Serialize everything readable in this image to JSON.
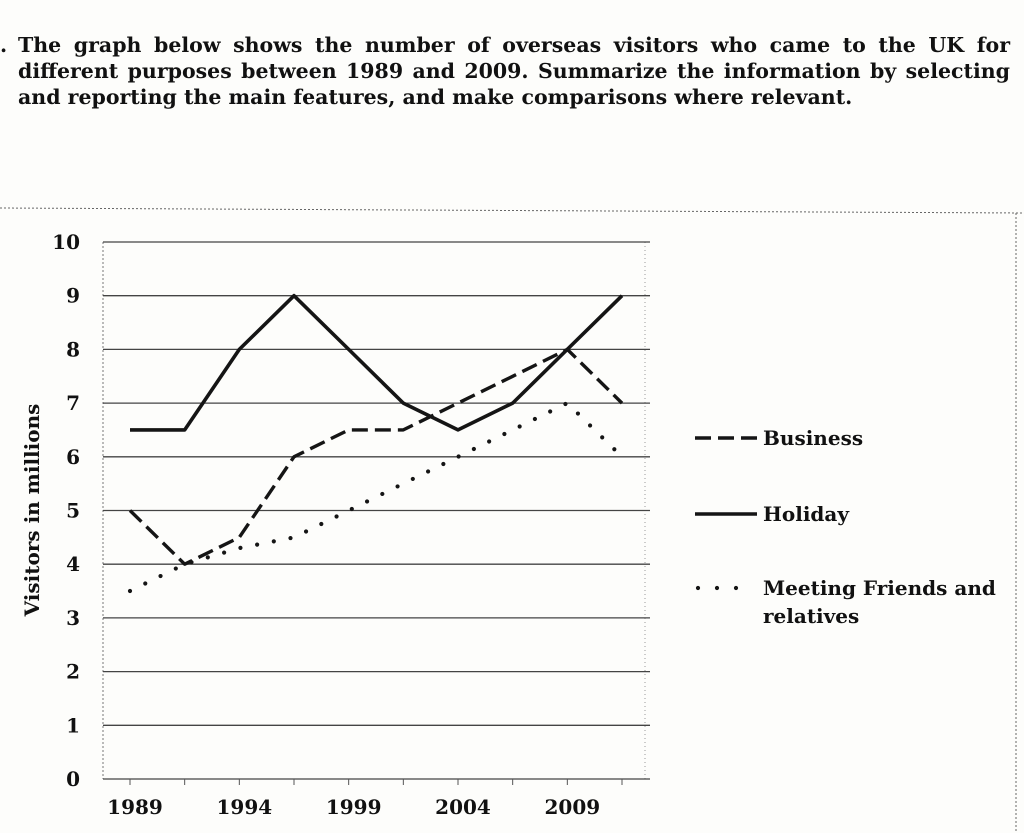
{
  "question": {
    "bullet": ".",
    "text": "The graph below shows the number of overseas visitors who came to the UK for different purposes between 1989 and 2009. Summarize the information by selecting and reporting the main features, and make comparisons where relevant."
  },
  "chart_data": {
    "type": "line",
    "title": "",
    "xlabel": "",
    "ylabel": "Visitors in millions",
    "ylim": [
      0,
      10
    ],
    "y_ticks": [
      0,
      1,
      2,
      3,
      4,
      5,
      6,
      7,
      8,
      9,
      10
    ],
    "x_ticks": [
      "1989",
      "1994",
      "1999",
      "2004",
      "2009"
    ],
    "grid": true,
    "legend_position": "right",
    "series": [
      {
        "name": "Business",
        "style": "dashed",
        "points": [
          [
            1989,
            5
          ],
          [
            1991.5,
            4
          ],
          [
            1994,
            4.5
          ],
          [
            1996.5,
            6
          ],
          [
            1999,
            6.5
          ],
          [
            2001.5,
            6.5
          ],
          [
            2004,
            7
          ],
          [
            2006.5,
            7.5
          ],
          [
            2009,
            8
          ],
          [
            2011.5,
            7
          ]
        ]
      },
      {
        "name": "Holiday",
        "style": "solid",
        "points": [
          [
            1989,
            6.5
          ],
          [
            1991.5,
            6.5
          ],
          [
            1994,
            8
          ],
          [
            1996.5,
            9
          ],
          [
            1999,
            8
          ],
          [
            2001.5,
            7
          ],
          [
            2004,
            6.5
          ],
          [
            2006.5,
            7
          ],
          [
            2009,
            8
          ],
          [
            2011.5,
            9
          ]
        ]
      },
      {
        "name": "Meeting Friends and relatives",
        "legend_lines": [
          "Meeting Friends and",
          "relatives"
        ],
        "style": "dotted",
        "points": [
          [
            1989,
            3.5
          ],
          [
            1991.5,
            4
          ],
          [
            1994,
            4.3
          ],
          [
            1996.5,
            4.5
          ],
          [
            1999,
            5
          ],
          [
            2001.5,
            5.5
          ],
          [
            2004,
            6
          ],
          [
            2006.5,
            6.5
          ],
          [
            2009,
            7
          ],
          [
            2011.5,
            6
          ]
        ]
      }
    ]
  }
}
